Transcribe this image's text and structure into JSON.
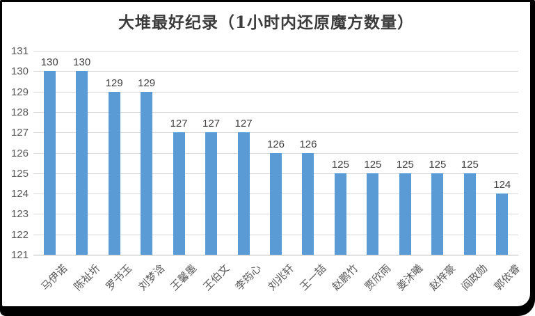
{
  "chart_data": {
    "type": "bar",
    "title": "大堆最好纪录（1小时内还原魔方数量）",
    "categories": [
      "马伊诺",
      "陈祉圻",
      "罗书玉",
      "刘梦浛",
      "王馨墨",
      "王伯文",
      "李筠心",
      "刘兆轩",
      "王一喆",
      "赵鹏竹",
      "贾欣雨",
      "姜沐曦",
      "赵梓豪",
      "阎政勋",
      "郭依睿"
    ],
    "values": [
      130,
      130,
      129,
      129,
      127,
      127,
      127,
      126,
      126,
      125,
      125,
      125,
      125,
      125,
      124
    ],
    "xlabel": "",
    "ylabel": "",
    "ylim": [
      121,
      131
    ],
    "yticks": [
      121,
      122,
      123,
      124,
      125,
      126,
      127,
      128,
      129,
      130,
      131
    ],
    "grid": true,
    "legend_position": "none",
    "data_labels": true,
    "colors": {
      "bar": "#5B9BD5",
      "gridline": "#d9d9d9",
      "axis_line": "#bfbfbf",
      "tick_text": "#595959",
      "data_label_text": "#3f3f3f",
      "title_text": "#3b3b3b",
      "frame": "#000000",
      "background": "#ffffff"
    }
  }
}
